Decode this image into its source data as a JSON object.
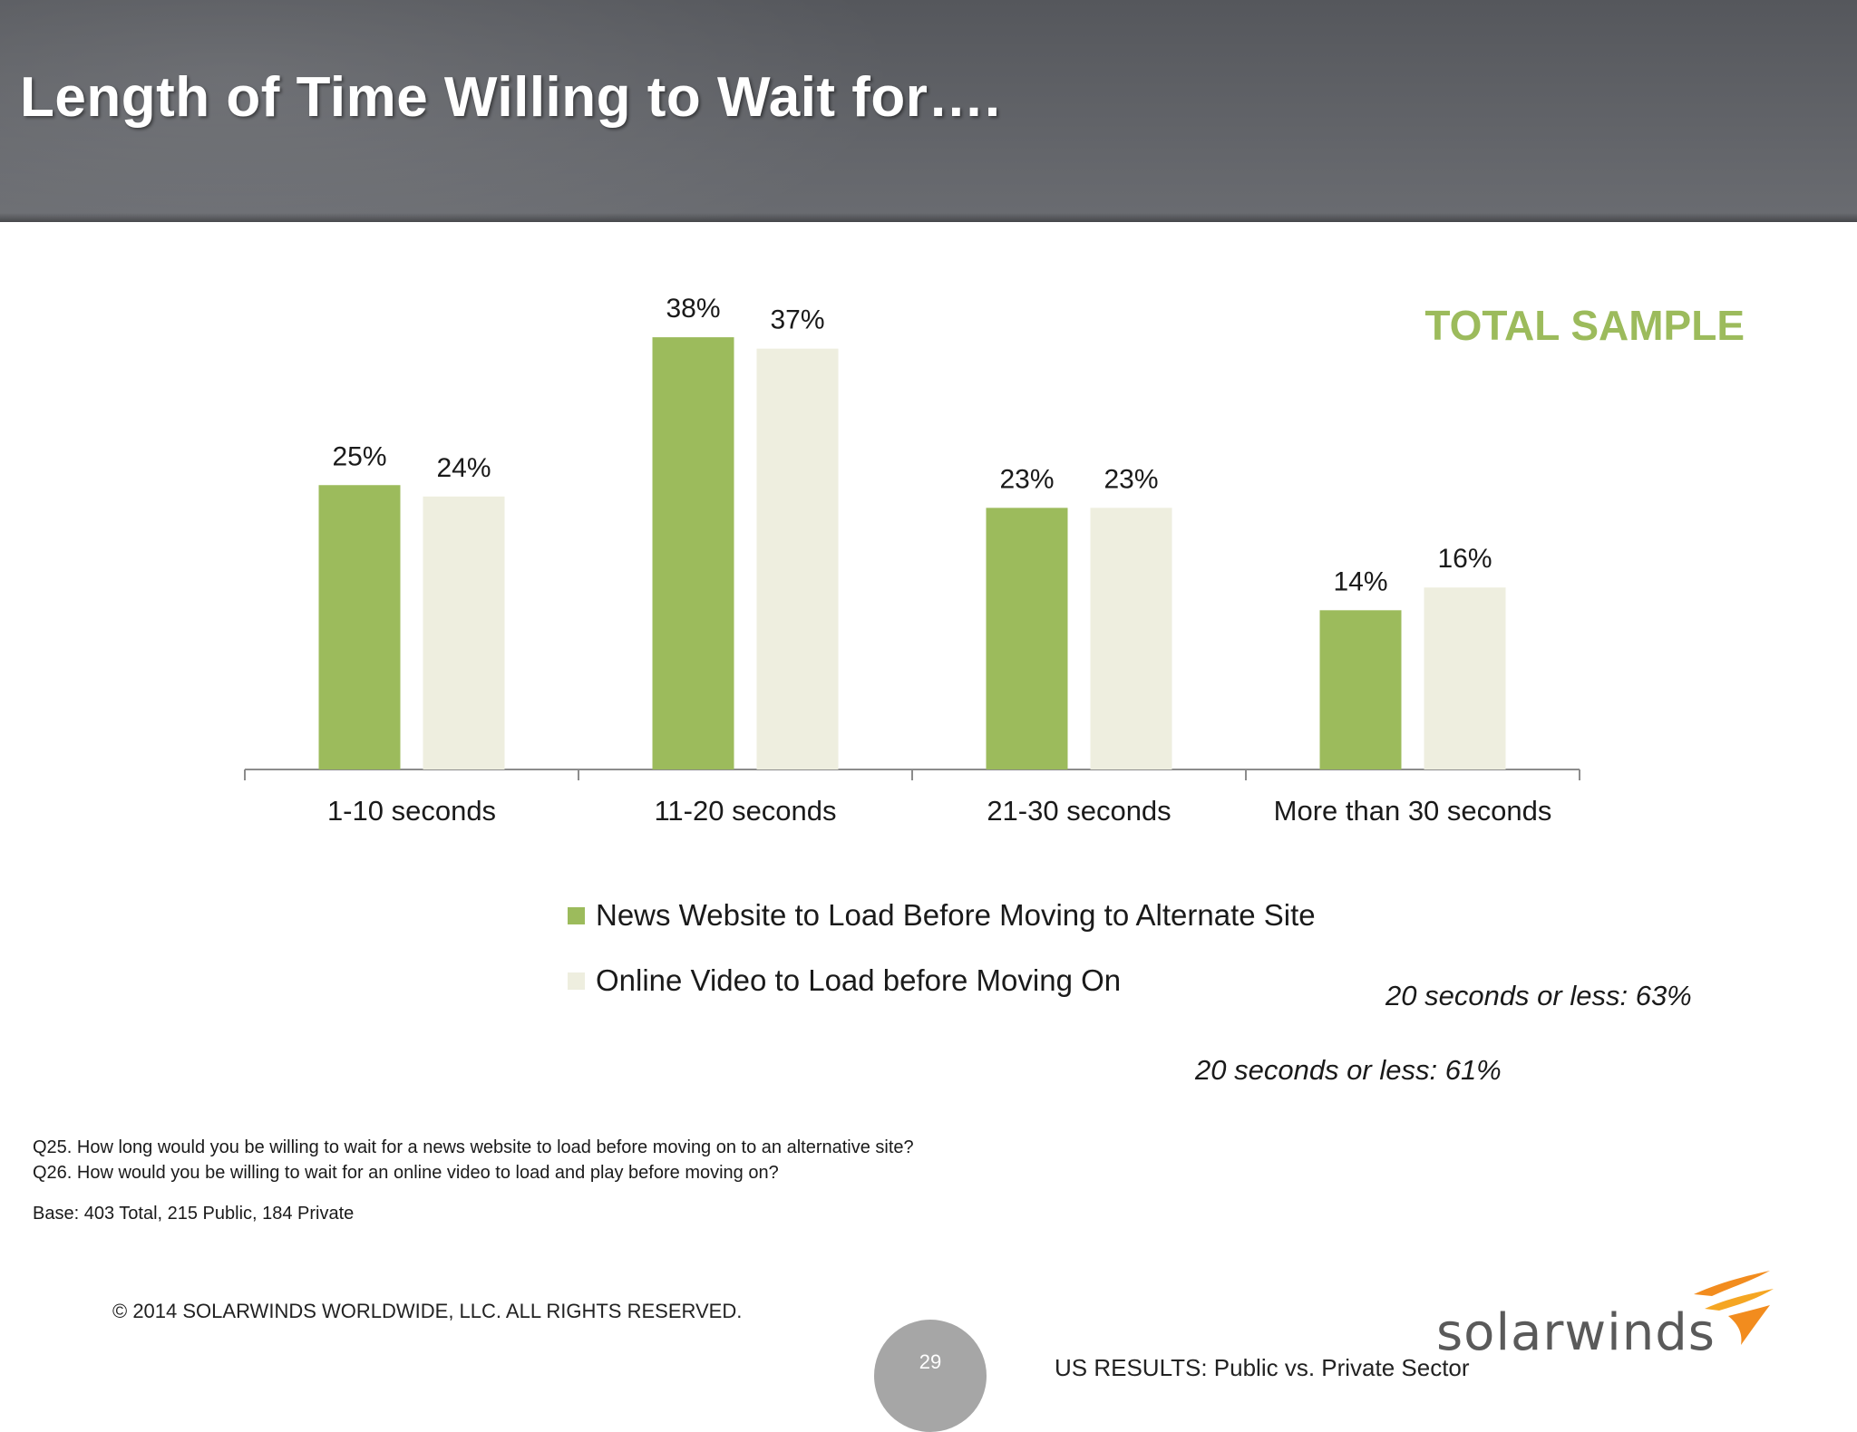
{
  "page": {
    "title": "Length of Time Willing to Wait for….",
    "sample_label": "TOTAL SAMPLE",
    "notes": [
      "20 seconds or less:  63%",
      "20 seconds or less:  61%"
    ],
    "questions": [
      "Q25. How long would you be willing to wait for a news website to load before moving on to an alternative site?",
      "Q26. How would you be willing to wait for an online video to load and play before moving on?"
    ],
    "base": "Base:  403  Total, 215 Public, 184 Private",
    "copyright": "© 2014 SOLARWINDS WORLDWIDE, LLC.  ALL RIGHTS RESERVED.",
    "page_number": "29",
    "footer_text": "US RESULTS:  Public vs. Private Sector",
    "logo": {
      "text": "solarwinds",
      "icon": "solarwinds-flame-logo-icon",
      "colors": [
        "#f28c1e",
        "#f5a623"
      ]
    }
  },
  "chart_data": {
    "type": "bar",
    "categories": [
      "1-10 seconds",
      "11-20 seconds",
      "21-30 seconds",
      "More than 30 seconds"
    ],
    "series": [
      {
        "name": "News Website to Load Before Moving to Alternate Site",
        "values": [
          25,
          38,
          23,
          14
        ],
        "labels": [
          "25%",
          "38%",
          "23%",
          "14%"
        ],
        "color": "#9cbb5c"
      },
      {
        "name": "Online Video to Load before Moving On",
        "values": [
          24,
          37,
          23,
          16
        ],
        "labels": [
          "24%",
          "37%",
          "23%",
          "16%"
        ],
        "color": "#eeeedf"
      }
    ],
    "unit": "%",
    "ylim": [
      0,
      40
    ],
    "y_axis_visible": false,
    "grid": false,
    "legend_position": "bottom"
  }
}
